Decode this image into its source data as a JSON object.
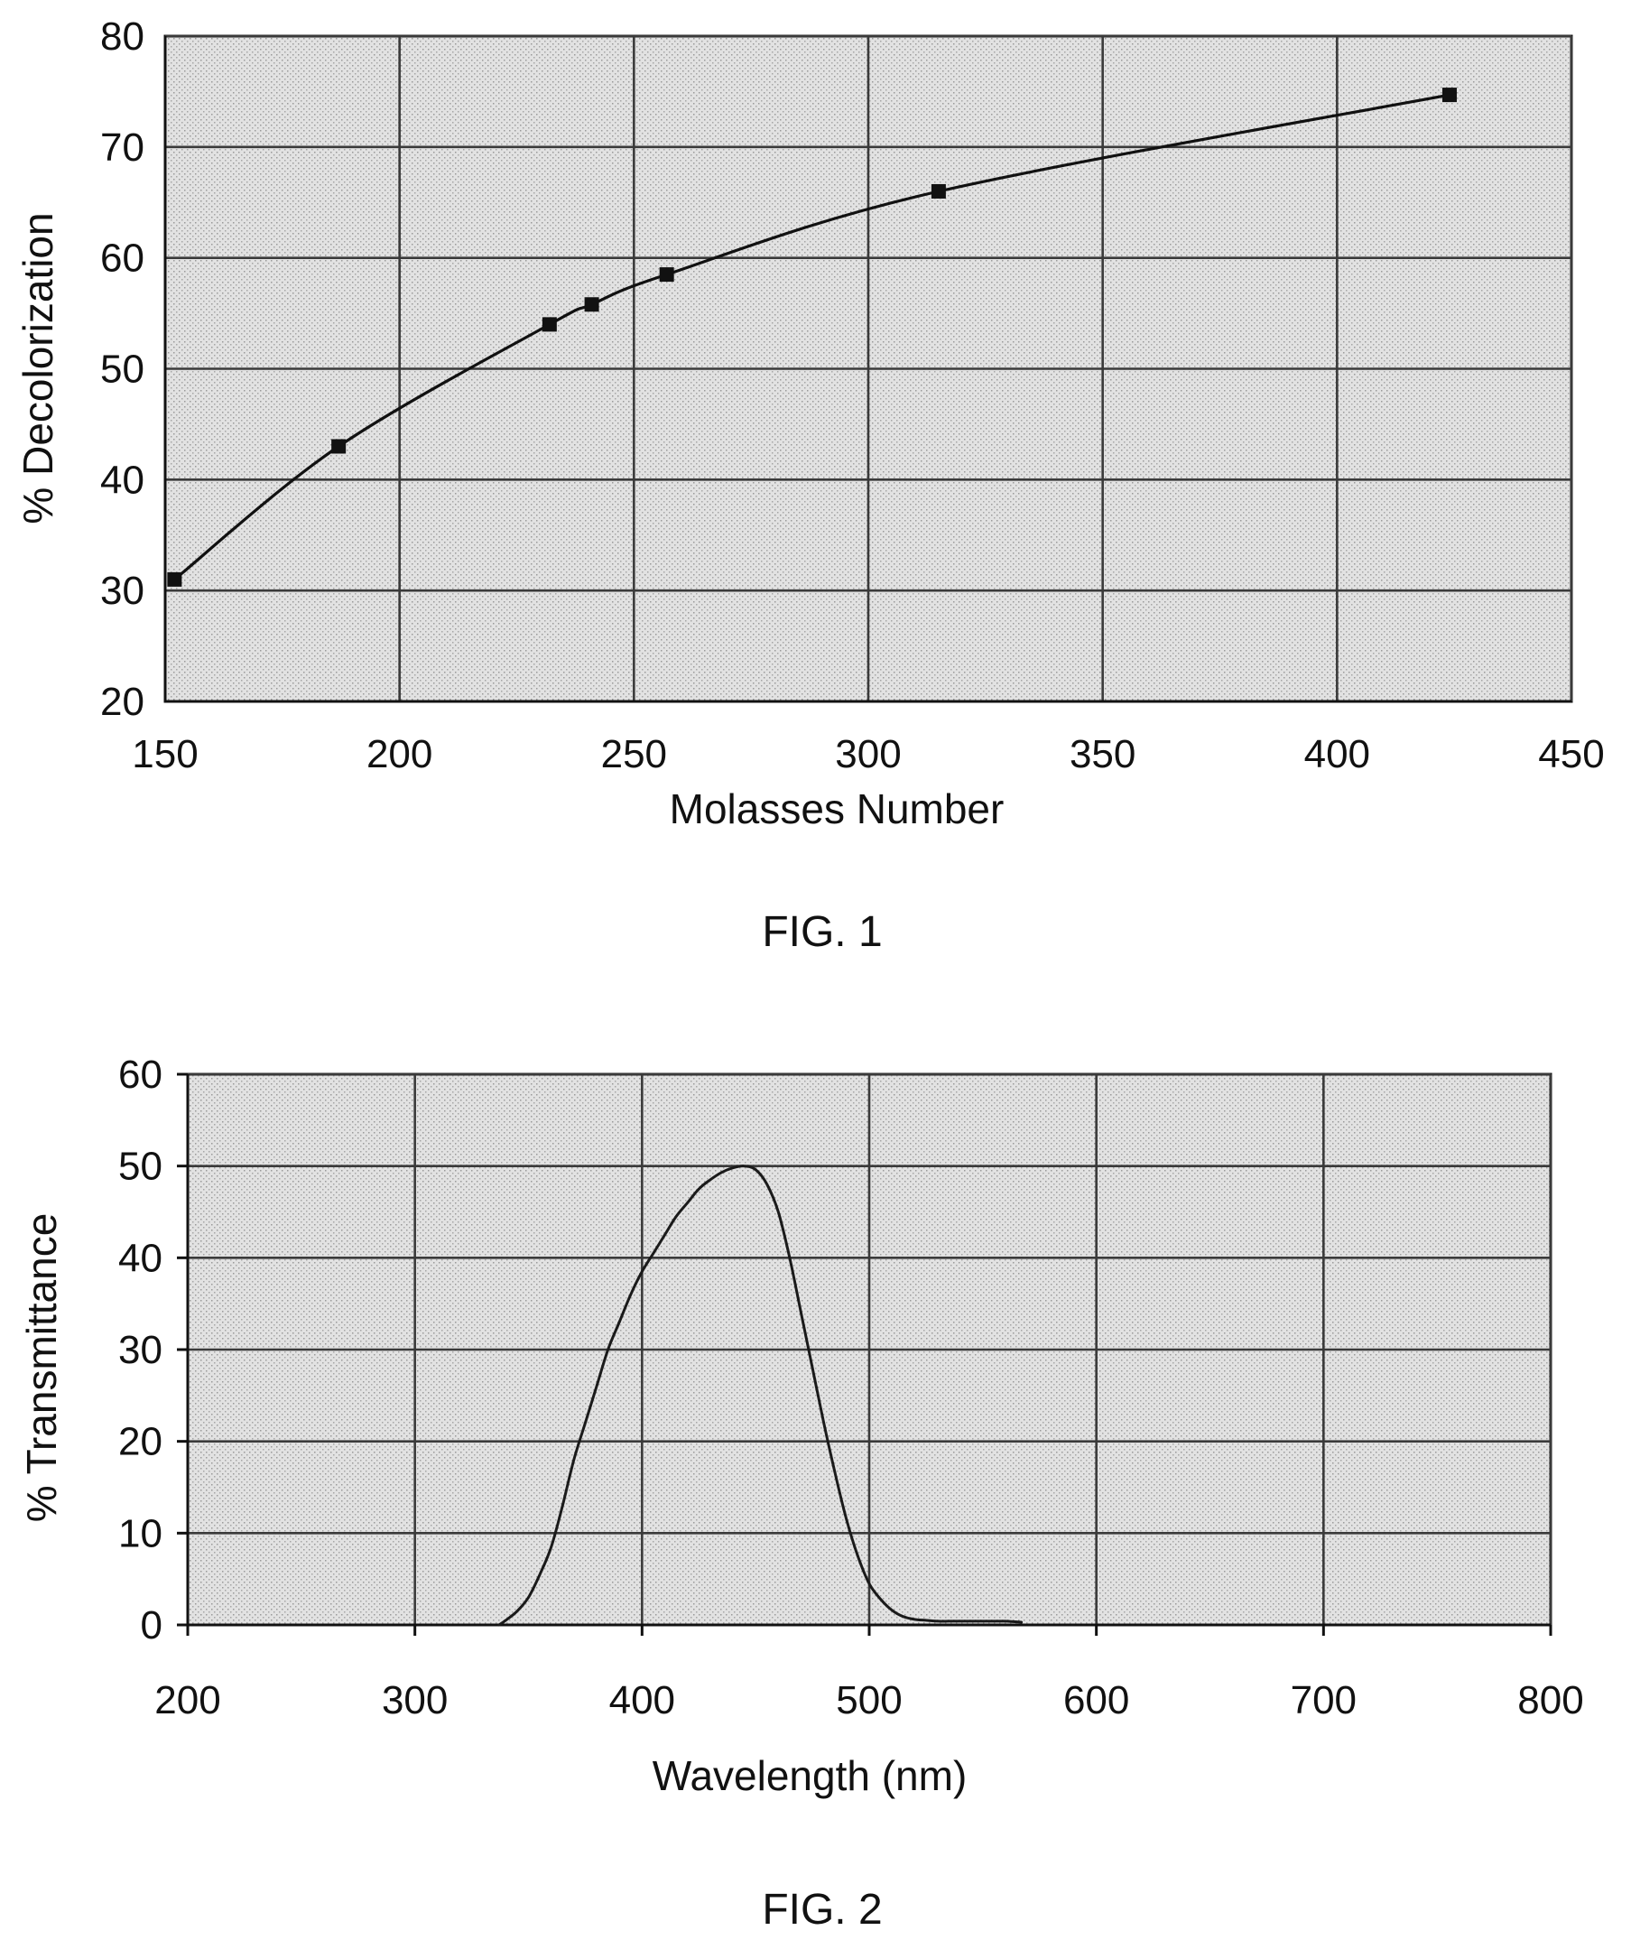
{
  "chart_data": [
    {
      "type": "line",
      "xlabel": "Molasses Number",
      "ylabel": "% Decolorization",
      "caption": "FIG. 1",
      "xlim": [
        150,
        450
      ],
      "ylim": [
        20,
        80
      ],
      "x_ticks": [
        150,
        200,
        250,
        300,
        350,
        400,
        450
      ],
      "y_ticks": [
        20,
        30,
        40,
        50,
        60,
        70,
        80
      ],
      "grid": true,
      "markers": "square",
      "series": [
        {
          "x": [
            152,
            187,
            232,
            241,
            257,
            315,
            424
          ],
          "y": [
            31,
            43,
            54,
            55.8,
            58.5,
            66,
            74.7
          ]
        }
      ]
    },
    {
      "type": "line",
      "xlabel": "Wavelength (nm)",
      "ylabel": "% Transmittance",
      "caption": "FIG. 2",
      "xlim": [
        200,
        800
      ],
      "ylim": [
        0,
        60
      ],
      "x_ticks": [
        200,
        300,
        400,
        500,
        600,
        700,
        800
      ],
      "y_ticks": [
        0,
        10,
        20,
        30,
        40,
        50,
        60
      ],
      "grid": true,
      "markers": "none",
      "series": [
        {
          "x": [
            337,
            340,
            345,
            350,
            355,
            360,
            365,
            370,
            375,
            380,
            385,
            390,
            395,
            400,
            405,
            410,
            415,
            420,
            425,
            430,
            435,
            440,
            445,
            450,
            455,
            460,
            465,
            470,
            475,
            480,
            485,
            490,
            495,
            500,
            505,
            510,
            515,
            520,
            525,
            530,
            535,
            540,
            545,
            550,
            555,
            560,
            567
          ],
          "y": [
            0,
            0.5,
            1.5,
            3,
            5.5,
            8.5,
            13,
            18,
            22,
            26,
            30,
            33,
            36,
            38.5,
            40.5,
            42.5,
            44.5,
            46,
            47.5,
            48.5,
            49.3,
            49.8,
            50,
            49.6,
            48,
            45,
            40,
            34,
            28,
            22,
            16.5,
            11.5,
            7.5,
            4.5,
            2.8,
            1.6,
            0.9,
            0.6,
            0.5,
            0.4,
            0.4,
            0.4,
            0.4,
            0.4,
            0.4,
            0.4,
            0.3
          ]
        }
      ]
    }
  ]
}
